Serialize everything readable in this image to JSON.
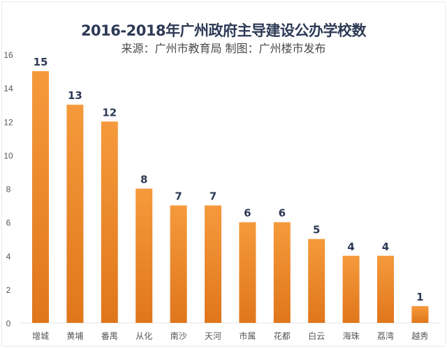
{
  "chart_data": {
    "type": "bar",
    "title": "2016-2018年广州政府主导建设公办学校数",
    "subtitle": "来源：广州市教育局 制图：广州楼市发布",
    "categories": [
      "增城",
      "黄埔",
      "番禺",
      "从化",
      "南沙",
      "天河",
      "市属",
      "花都",
      "白云",
      "海珠",
      "荔湾",
      "越秀"
    ],
    "values": [
      15,
      13,
      12,
      8,
      7,
      7,
      6,
      6,
      5,
      4,
      4,
      1
    ],
    "yticks": [
      0,
      2,
      4,
      6,
      8,
      10,
      12,
      14,
      16
    ],
    "ylim": [
      0,
      16
    ],
    "xlabel": "",
    "ylabel": "",
    "grid": false,
    "bar_color_top": "#f59a3c",
    "bar_color_bottom": "#e0761c",
    "label_color": "#2d3a56"
  }
}
